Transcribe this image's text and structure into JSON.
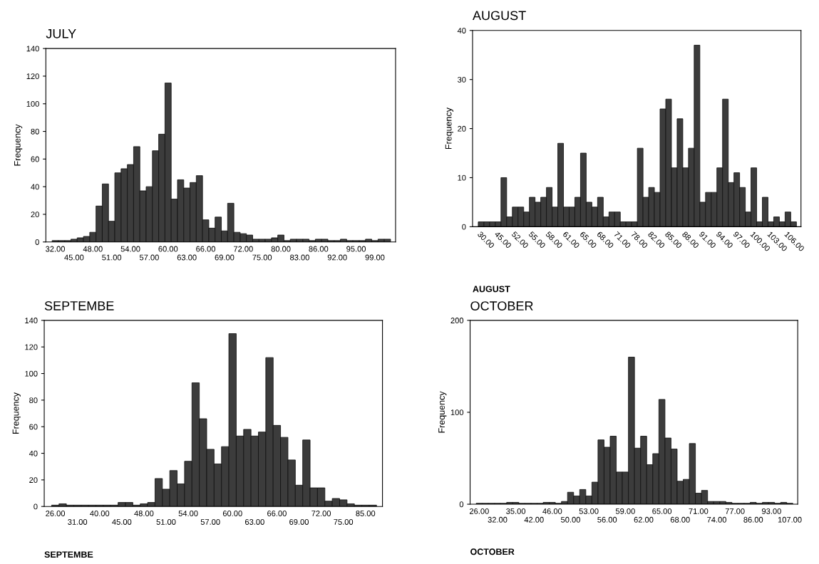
{
  "chart_data": [
    {
      "type": "bar",
      "title": "JULY",
      "ylabel": "Frequency",
      "color": "#3c3c3c",
      "ylim": [
        0,
        140
      ],
      "yticks": [
        0,
        20,
        40,
        60,
        80,
        100,
        120,
        140
      ],
      "grid": false,
      "legend": false,
      "categories": [
        "32.00",
        null,
        null,
        "45.00",
        null,
        null,
        "48.00",
        null,
        null,
        "51.00",
        null,
        null,
        "54.00",
        null,
        null,
        "57.00",
        null,
        null,
        "60.00",
        null,
        null,
        "63.00",
        null,
        null,
        "66.00",
        null,
        null,
        "69.00",
        null,
        null,
        "72.00",
        null,
        null,
        "75.00",
        null,
        null,
        "80.00",
        null,
        null,
        "83.00",
        null,
        null,
        "86.00",
        null,
        null,
        "92.00",
        null,
        null,
        "95.00",
        null,
        null,
        "99.00",
        null,
        null
      ],
      "values": [
        1,
        1,
        1,
        2,
        3,
        4,
        7,
        26,
        42,
        15,
        50,
        53,
        56,
        69,
        37,
        40,
        66,
        78,
        115,
        31,
        45,
        39,
        43,
        48,
        16,
        10,
        18,
        8,
        28,
        7,
        6,
        5,
        2,
        2,
        2,
        3,
        5,
        1,
        2,
        2,
        2,
        1,
        2,
        2,
        1,
        1,
        2,
        1,
        1,
        1,
        2,
        1,
        2,
        2
      ]
    },
    {
      "type": "bar",
      "title": "AUGUST",
      "xlabel": "AUGUST",
      "ylabel": "Frequency",
      "color": "#3c3c3c",
      "ylim": [
        0,
        40
      ],
      "yticks": [
        0,
        10,
        20,
        30,
        40
      ],
      "grid": false,
      "legend": false,
      "categories": [
        "30.00",
        null,
        null,
        "45.00",
        null,
        null,
        "52.00",
        null,
        null,
        "55.00",
        null,
        null,
        "58.00",
        null,
        null,
        "61.00",
        null,
        null,
        "65.00",
        null,
        null,
        "68.00",
        null,
        null,
        "71.00",
        null,
        null,
        "78.00",
        null,
        null,
        "82.00",
        null,
        null,
        "85.00",
        null,
        null,
        "88.00",
        null,
        null,
        "91.00",
        null,
        null,
        "94.00",
        null,
        null,
        "97.00",
        null,
        null,
        "100.00",
        null,
        null,
        "103.00",
        null,
        null,
        "106.00",
        null
      ],
      "values": [
        1,
        1,
        1,
        1,
        10,
        2,
        4,
        4,
        3,
        6,
        5,
        6,
        8,
        4,
        17,
        4,
        4,
        6,
        15,
        5,
        4,
        6,
        2,
        3,
        3,
        1,
        1,
        1,
        16,
        6,
        8,
        7,
        24,
        26,
        12,
        22,
        12,
        16,
        37,
        5,
        7,
        7,
        12,
        26,
        9,
        11,
        8,
        3,
        12,
        1,
        6,
        1,
        2,
        1,
        3,
        1
      ]
    },
    {
      "type": "bar",
      "title": "SEPTEMBE",
      "xlabel": "SEPTEMBE",
      "ylabel": "Frequency",
      "color": "#3c3c3c",
      "ylim": [
        0,
        140
      ],
      "yticks": [
        0,
        20,
        40,
        60,
        80,
        100,
        120,
        140
      ],
      "grid": false,
      "legend": false,
      "categories": [
        "26.00",
        null,
        null,
        "31.00",
        null,
        null,
        "40.00",
        null,
        null,
        "45.00",
        null,
        null,
        "48.00",
        null,
        null,
        "51.00",
        null,
        null,
        "54.00",
        null,
        null,
        "57.00",
        null,
        null,
        "60.00",
        null,
        null,
        "63.00",
        null,
        null,
        "66.00",
        null,
        null,
        "69.00",
        null,
        null,
        "72.00",
        null,
        null,
        "75.00",
        null,
        null,
        "85.00",
        null
      ],
      "values": [
        1,
        2,
        1,
        1,
        1,
        1,
        1,
        1,
        1,
        3,
        3,
        1,
        2,
        3,
        21,
        13,
        27,
        17,
        34,
        93,
        66,
        43,
        32,
        45,
        130,
        53,
        58,
        53,
        56,
        112,
        61,
        52,
        35,
        16,
        50,
        14,
        14,
        4,
        6,
        5,
        2,
        1,
        1,
        1
      ]
    },
    {
      "type": "bar",
      "title": "OCTOBER",
      "xlabel": "OCTOBER",
      "ylabel": "Frequency",
      "color": "#3c3c3c",
      "ylim": [
        0,
        200
      ],
      "yticks": [
        0,
        100,
        200
      ],
      "grid": false,
      "legend": false,
      "categories": [
        "26.00",
        null,
        null,
        "32.00",
        null,
        null,
        "35.00",
        null,
        null,
        "42.00",
        null,
        null,
        "46.00",
        null,
        null,
        "50.00",
        null,
        null,
        "53.00",
        null,
        null,
        "56.00",
        null,
        null,
        "59.00",
        null,
        null,
        "62.00",
        null,
        null,
        "65.00",
        null,
        null,
        "68.00",
        null,
        null,
        "71.00",
        null,
        null,
        "74.00",
        null,
        null,
        "77.00",
        null,
        null,
        "86.00",
        null,
        null,
        "93.00",
        null,
        null,
        "107.00"
      ],
      "values": [
        1,
        1,
        1,
        1,
        1,
        2,
        2,
        1,
        1,
        1,
        1,
        2,
        2,
        1,
        3,
        13,
        9,
        16,
        9,
        24,
        70,
        62,
        74,
        35,
        35,
        160,
        61,
        74,
        43,
        55,
        114,
        72,
        60,
        25,
        27,
        66,
        12,
        15,
        3,
        3,
        3,
        2,
        1,
        1,
        1,
        2,
        1,
        2,
        2,
        1,
        2,
        1
      ]
    }
  ]
}
